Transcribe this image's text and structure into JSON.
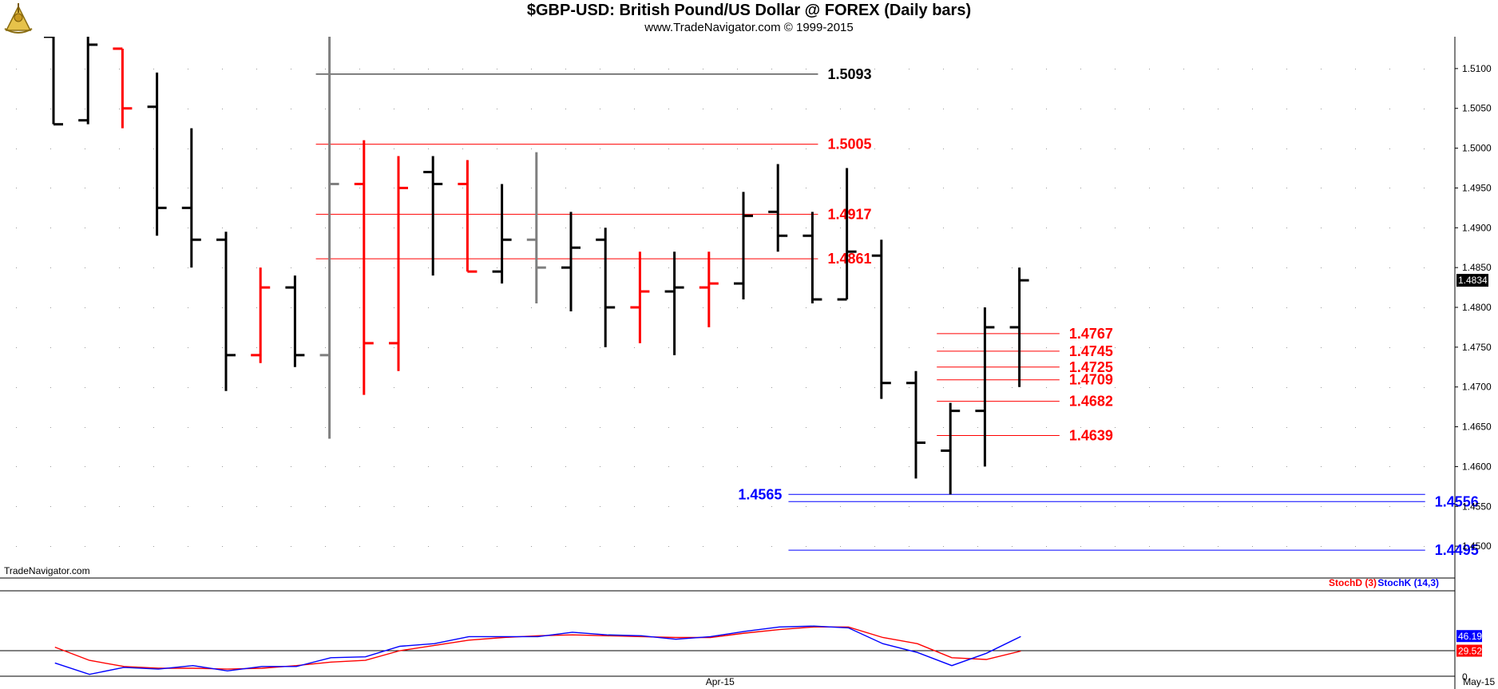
{
  "header": {
    "title": "$GBP-USD:  British Pound/US Dollar @ FOREX  (Daily bars)",
    "subtitle": "www.TradeNavigator.com © 1999-2015",
    "watermark": "TradeNavigator.com"
  },
  "colors": {
    "up": "#000000",
    "down": "#ff0000",
    "neutral": "#7f7f7f",
    "blue": "#0000ff",
    "red": "#ff0000"
  },
  "chart_data": [
    {
      "type": "ohlc",
      "title": "$GBP-USD:  British Pound/US Dollar @ FOREX  (Daily bars)",
      "ylim": [
        1.446,
        1.514
      ],
      "y_ticks": [
        "1.4500",
        "1.4550",
        "1.4600",
        "1.4650",
        "1.4700",
        "1.4750",
        "1.4800",
        "1.4850",
        "1.4900",
        "1.4950",
        "1.5000",
        "1.5050",
        "1.5100"
      ],
      "x_ticks": [
        {
          "label": "Apr-15",
          "index": 19
        },
        {
          "label": "May-15",
          "index": 41
        }
      ],
      "last_price": "1.4834",
      "bars": [
        {
          "o": 1.514,
          "h": 1.514,
          "l": 1.503,
          "c": 1.503,
          "color": "up"
        },
        {
          "o": 1.5035,
          "h": 1.514,
          "l": 1.503,
          "c": 1.513,
          "color": "up"
        },
        {
          "o": 1.5125,
          "h": 1.5125,
          "l": 1.5025,
          "c": 1.505,
          "color": "down"
        },
        {
          "o": 1.5052,
          "h": 1.5095,
          "l": 1.489,
          "c": 1.4925,
          "color": "up"
        },
        {
          "o": 1.4925,
          "h": 1.5025,
          "l": 1.485,
          "c": 1.4885,
          "color": "up"
        },
        {
          "o": 1.4885,
          "h": 1.4895,
          "l": 1.4695,
          "c": 1.474,
          "color": "up"
        },
        {
          "o": 1.474,
          "h": 1.485,
          "l": 1.473,
          "c": 1.4825,
          "color": "down"
        },
        {
          "o": 1.4825,
          "h": 1.484,
          "l": 1.4725,
          "c": 1.474,
          "color": "up"
        },
        {
          "o": 1.474,
          "h": 1.514,
          "l": 1.4635,
          "c": 1.4955,
          "color": "neutral"
        },
        {
          "o": 1.4955,
          "h": 1.501,
          "l": 1.469,
          "c": 1.4755,
          "color": "down"
        },
        {
          "o": 1.4755,
          "h": 1.499,
          "l": 1.472,
          "c": 1.495,
          "color": "down"
        },
        {
          "o": 1.497,
          "h": 1.499,
          "l": 1.484,
          "c": 1.4955,
          "color": "up"
        },
        {
          "o": 1.4955,
          "h": 1.4985,
          "l": 1.4845,
          "c": 1.4845,
          "color": "down"
        },
        {
          "o": 1.4845,
          "h": 1.4955,
          "l": 1.483,
          "c": 1.4885,
          "color": "up"
        },
        {
          "o": 1.4885,
          "h": 1.4995,
          "l": 1.4805,
          "c": 1.485,
          "color": "neutral"
        },
        {
          "o": 1.485,
          "h": 1.492,
          "l": 1.4795,
          "c": 1.4875,
          "color": "up"
        },
        {
          "o": 1.4885,
          "h": 1.49,
          "l": 1.475,
          "c": 1.48,
          "color": "up"
        },
        {
          "o": 1.48,
          "h": 1.487,
          "l": 1.4755,
          "c": 1.482,
          "color": "down"
        },
        {
          "o": 1.482,
          "h": 1.487,
          "l": 1.474,
          "c": 1.4825,
          "color": "up"
        },
        {
          "o": 1.4825,
          "h": 1.487,
          "l": 1.4775,
          "c": 1.483,
          "color": "down"
        },
        {
          "o": 1.483,
          "h": 1.4945,
          "l": 1.481,
          "c": 1.4915,
          "color": "up"
        },
        {
          "o": 1.492,
          "h": 1.498,
          "l": 1.487,
          "c": 1.489,
          "color": "up"
        },
        {
          "o": 1.489,
          "h": 1.492,
          "l": 1.4805,
          "c": 1.481,
          "color": "up"
        },
        {
          "o": 1.481,
          "h": 1.4975,
          "l": 1.481,
          "c": 1.487,
          "color": "up"
        },
        {
          "o": 1.4865,
          "h": 1.4885,
          "l": 1.4685,
          "c": 1.4705,
          "color": "up"
        },
        {
          "o": 1.4705,
          "h": 1.472,
          "l": 1.4585,
          "c": 1.463,
          "color": "up"
        },
        {
          "o": 1.462,
          "h": 1.468,
          "l": 1.4565,
          "c": 1.467,
          "color": "up"
        },
        {
          "o": 1.467,
          "h": 1.48,
          "l": 1.46,
          "c": 1.4775,
          "color": "up"
        },
        {
          "o": 1.4775,
          "h": 1.485,
          "l": 1.47,
          "c": 1.4834,
          "color": "up"
        }
      ],
      "levels": [
        {
          "value": 1.5093,
          "label": "1.5093",
          "color": "#000000",
          "from": 8,
          "to": 21.7
        },
        {
          "value": 1.5005,
          "label": "1.5005",
          "color": "#ff0000",
          "from": 8,
          "to": 21.7
        },
        {
          "value": 1.4917,
          "label": "1.4917",
          "color": "#ff0000",
          "from": 8,
          "to": 21.7
        },
        {
          "value": 1.4861,
          "label": "1.4861",
          "color": "#ff0000",
          "from": 8,
          "to": 21.7
        },
        {
          "value": 1.4767,
          "label": "1.4767",
          "color": "#ff0000",
          "from": 26,
          "to": 28.7
        },
        {
          "value": 1.4745,
          "label": "1.4745",
          "color": "#ff0000",
          "from": 26,
          "to": 28.7
        },
        {
          "value": 1.4725,
          "label": "1.4725",
          "color": "#ff0000",
          "from": 26,
          "to": 28.7
        },
        {
          "value": 1.4709,
          "label": "1.4709",
          "color": "#ff0000",
          "from": 26,
          "to": 28.7
        },
        {
          "value": 1.4682,
          "label": "1.4682",
          "color": "#ff0000",
          "from": 26,
          "to": 28.7
        },
        {
          "value": 1.4639,
          "label": "1.4639",
          "color": "#ff0000",
          "from": 26,
          "to": 28.7
        },
        {
          "value": 1.4565,
          "label": "1.4565",
          "color": "#0000ff",
          "from": 21.7,
          "to": 39.3
        },
        {
          "value": 1.4556,
          "label": "1.4556",
          "color": "#0000ff",
          "from": 21.7,
          "to": 39.3
        },
        {
          "value": 1.4495,
          "label": "1.4495",
          "color": "#0000ff",
          "from": 21.7,
          "to": 39.3
        }
      ]
    },
    {
      "type": "line",
      "title": "",
      "ylim": [
        0,
        100
      ],
      "y_ticks": [
        "0"
      ],
      "legend": [
        "StochD (3)",
        "StochK (14,3)"
      ],
      "series": [
        {
          "name": "StochD (3)",
          "color": "#ff0000",
          "last_label": "29.52",
          "values": [
            34,
            19,
            12,
            10,
            10,
            9,
            10,
            13,
            17,
            19,
            30,
            36,
            42,
            45,
            47,
            48,
            47,
            46,
            45,
            45,
            50,
            54,
            57,
            57,
            45,
            38,
            22,
            20,
            29.52
          ]
        },
        {
          "name": "StochK (14,3)",
          "color": "#0000ff",
          "last_label": "46.19",
          "values": [
            16,
            3,
            11,
            9,
            13,
            7,
            12,
            12,
            22,
            23,
            35,
            38,
            46,
            46,
            46,
            51,
            48,
            47,
            43,
            46,
            52,
            57,
            58,
            56,
            38,
            28,
            13,
            27,
            46.19
          ]
        }
      ]
    }
  ]
}
